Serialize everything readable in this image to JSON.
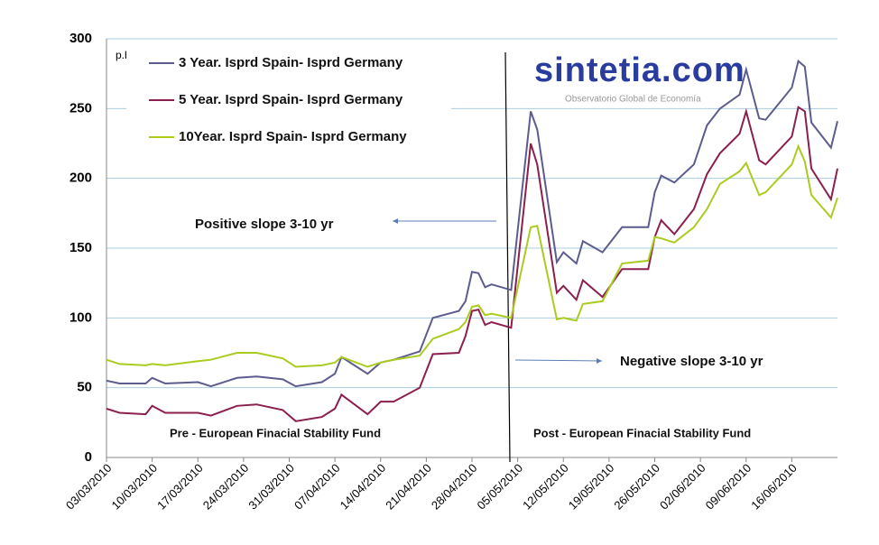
{
  "chart_data": {
    "type": "line",
    "unit_label": "p.b.",
    "x": [
      "03/03/2010",
      "05/03/2010",
      "09/03/2010",
      "10/03/2010",
      "12/03/2010",
      "17/03/2010",
      "19/03/2010",
      "23/03/2010",
      "26/03/2010",
      "30/03/2010",
      "01/04/2010",
      "05/04/2010",
      "07/04/2010",
      "08/04/2010",
      "12/04/2010",
      "14/04/2010",
      "16/04/2010",
      "20/04/2010",
      "22/04/2010",
      "26/04/2010",
      "27/04/2010",
      "28/04/2010",
      "29/04/2010",
      "30/04/2010",
      "01/05/2010",
      "04/05/2010",
      "07/05/2010",
      "08/05/2010",
      "11/05/2010",
      "12/05/2010",
      "14/05/2010",
      "15/05/2010",
      "18/05/2010",
      "21/05/2010",
      "25/05/2010",
      "26/05/2010",
      "27/05/2010",
      "29/05/2010",
      "01/06/2010",
      "03/06/2010",
      "05/06/2010",
      "08/06/2010",
      "09/06/2010",
      "11/06/2010",
      "12/06/2010",
      "16/06/2010",
      "17/06/2010",
      "18/06/2010",
      "19/06/2010",
      "22/06/2010",
      "23/06/2010"
    ],
    "series": [
      {
        "name": "3 Year. Isprd Spain- Isprd Germany",
        "color": "#5c5c8e",
        "values": [
          55,
          53,
          53,
          57,
          53,
          54,
          51,
          57,
          58,
          56,
          51,
          54,
          60,
          72,
          60,
          68,
          70,
          76,
          100,
          105,
          112,
          133,
          132,
          122,
          124,
          120,
          248,
          235,
          140,
          147,
          139,
          155,
          147,
          165,
          165,
          190,
          202,
          197,
          210,
          238,
          250,
          260,
          278,
          243,
          242,
          265,
          284,
          280,
          240,
          222,
          241
        ]
      },
      {
        "name": "5 Year. Isprd Spain- Isprd Germany",
        "color": "#8b1f4e",
        "values": [
          35,
          32,
          31,
          37,
          32,
          32,
          30,
          37,
          38,
          34,
          26,
          29,
          35,
          45,
          31,
          40,
          40,
          50,
          74,
          75,
          87,
          105,
          106,
          95,
          97,
          93,
          225,
          210,
          118,
          123,
          113,
          127,
          115,
          135,
          135,
          158,
          170,
          160,
          178,
          203,
          218,
          232,
          248,
          213,
          210,
          230,
          251,
          248,
          207,
          185,
          207
        ]
      },
      {
        "name": "10Year. Isprd Spain- Isprd Germany",
        "color": "#a9cc1f",
        "values": [
          70,
          67,
          66,
          67,
          66,
          69,
          70,
          75,
          75,
          71,
          65,
          66,
          68,
          72,
          65,
          68,
          70,
          73,
          85,
          92,
          97,
          108,
          109,
          102,
          103,
          100,
          165,
          166,
          99,
          100,
          98,
          110,
          112,
          139,
          141,
          158,
          157,
          154,
          165,
          178,
          196,
          205,
          211,
          188,
          190,
          210,
          223,
          212,
          188,
          172,
          186
        ]
      }
    ],
    "xlim": [
      "03/03/2010",
      "23/06/2010"
    ],
    "xticks": [
      "03/03/2010",
      "10/03/2010",
      "17/03/2010",
      "24/03/2010",
      "31/03/2010",
      "07/04/2010",
      "14/04/2010",
      "21/04/2010",
      "28/04/2010",
      "05/05/2010",
      "12/05/2010",
      "19/05/2010",
      "26/05/2010",
      "02/06/2010",
      "09/06/2010",
      "16/06/2010"
    ],
    "ylim": [
      0,
      300
    ],
    "yticks": [
      0,
      50,
      100,
      150,
      200,
      250,
      300
    ],
    "grid": true,
    "annotations": [
      "Positive slope 3-10 yr",
      "Negative slope 3-10 yr",
      "Pre - European Finacial Stability Fund",
      "Post - European Finacial Stability Fund"
    ],
    "logo": {
      "name": "sintetia.com",
      "tagline": "Observatorio Global de Economía"
    }
  }
}
